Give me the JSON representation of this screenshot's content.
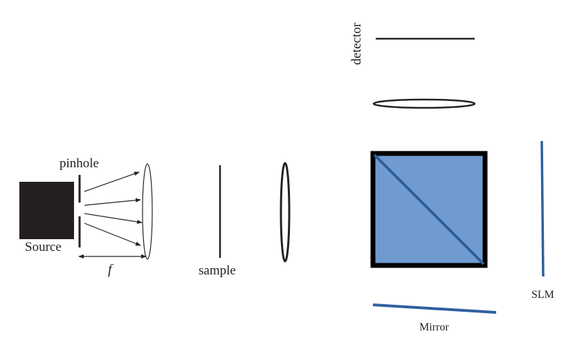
{
  "labels": {
    "pinhole": "pinhole",
    "source": "Source",
    "focal_length": "f",
    "sample": "sample",
    "detector": "detector",
    "slm": "SLM",
    "mirror": "Mirror"
  },
  "colors": {
    "ink": "#222222",
    "beam_splitter_fill": "#6f9bd1",
    "accent_blue": "#2f5f9e",
    "source_fill": "#231f20"
  }
}
